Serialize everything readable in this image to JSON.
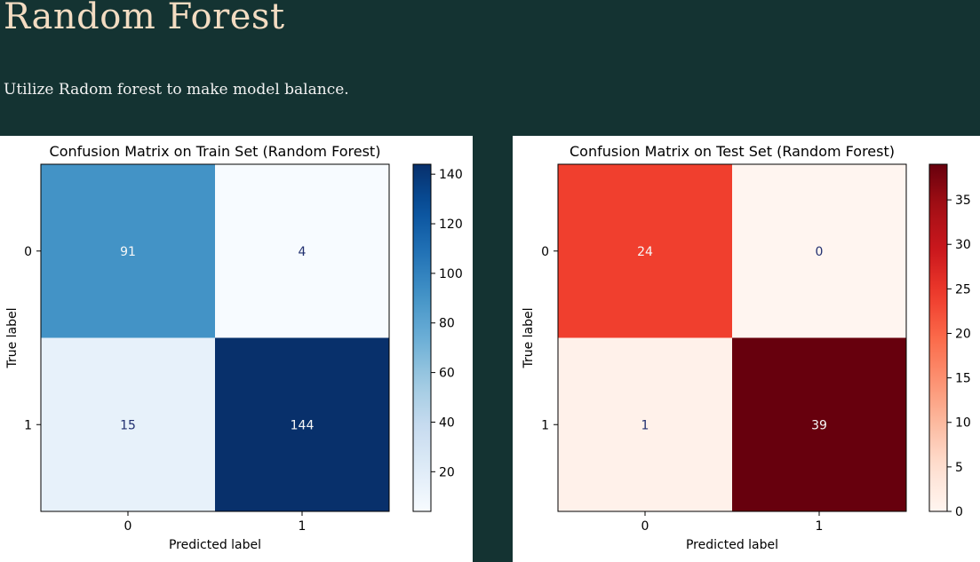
{
  "header": {
    "title": "Random Forest",
    "subtitle": "Utilize Radom forest to make model balance."
  },
  "colors": {
    "page_background": "#143332",
    "title_color": "#f3dcc2"
  },
  "chart_data": [
    {
      "type": "heatmap",
      "title": "Confusion Matrix on Train Set (Random Forest)",
      "xlabel": "Predicted label",
      "ylabel": "True label",
      "x_categories": [
        "0",
        "1"
      ],
      "y_categories": [
        "0",
        "1"
      ],
      "values": [
        [
          91,
          4
        ],
        [
          15,
          144
        ]
      ],
      "colormap": "Blues",
      "colorbar_range": [
        4,
        144
      ],
      "colorbar_ticks": [
        20,
        40,
        60,
        80,
        100,
        120,
        140
      ]
    },
    {
      "type": "heatmap",
      "title": "Confusion Matrix on Test Set (Random Forest)",
      "xlabel": "Predicted label",
      "ylabel": "True label",
      "x_categories": [
        "0",
        "1"
      ],
      "y_categories": [
        "0",
        "1"
      ],
      "values": [
        [
          24,
          0
        ],
        [
          1,
          39
        ]
      ],
      "colormap": "Reds",
      "colorbar_range": [
        0,
        39
      ],
      "colorbar_ticks": [
        0,
        5,
        10,
        15,
        20,
        25,
        30,
        35
      ]
    }
  ]
}
